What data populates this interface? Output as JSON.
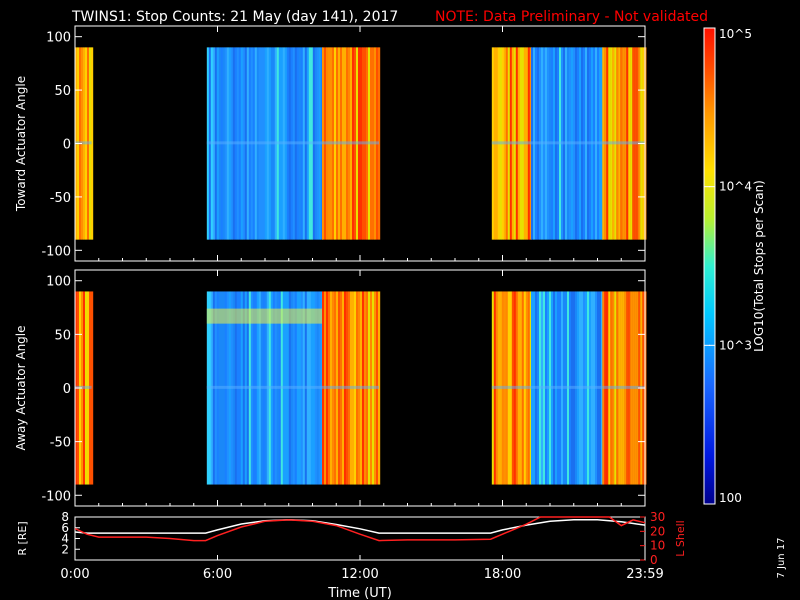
{
  "header": {
    "title": "TWINS1: Stop Counts: 21 May (day 141), 2017",
    "note": "NOTE: Data Preliminary - Not validated",
    "note_color": "#ff0000"
  },
  "side_label": "7 Jun 17",
  "colorbar": {
    "label": "LOG10(Total Stops per Scan)",
    "ticks": [
      "10^5",
      "10^4",
      "10^3",
      "100"
    ],
    "range": [
      100,
      100000
    ],
    "scale": "log"
  },
  "chart_data": [
    {
      "type": "heatmap",
      "panel": "top",
      "ylabel": "Toward Actuator Angle",
      "ylim": [
        -110,
        110
      ],
      "yticks": [
        100,
        50,
        0,
        -50,
        -100
      ],
      "xlim": [
        0,
        24
      ],
      "data_angle_range": [
        -90,
        90
      ],
      "segments": [
        {
          "start": 0.0,
          "end": 0.7,
          "level": "high"
        },
        {
          "start": 5.55,
          "end": 10.4,
          "level": "low"
        },
        {
          "start": 10.4,
          "end": 12.8,
          "level": "high"
        },
        {
          "start": 17.55,
          "end": 19.2,
          "level": "high"
        },
        {
          "start": 19.2,
          "end": 22.2,
          "level": "low"
        },
        {
          "start": 22.2,
          "end": 23.98,
          "level": "high"
        }
      ]
    },
    {
      "type": "heatmap",
      "panel": "middle",
      "ylabel": "Away Actuator Angle",
      "ylim": [
        -110,
        110
      ],
      "yticks": [
        100,
        50,
        0,
        -50,
        -100
      ],
      "xlim": [
        0,
        24
      ],
      "data_angle_range": [
        -90,
        90
      ],
      "segments": [
        {
          "start": 0.0,
          "end": 0.7,
          "level": "high"
        },
        {
          "start": 5.55,
          "end": 10.4,
          "level": "low"
        },
        {
          "start": 10.4,
          "end": 12.8,
          "level": "high"
        },
        {
          "start": 17.55,
          "end": 19.2,
          "level": "high"
        },
        {
          "start": 19.2,
          "end": 22.2,
          "level": "low"
        },
        {
          "start": 22.2,
          "end": 23.98,
          "level": "high"
        }
      ]
    },
    {
      "type": "line",
      "panel": "bottom",
      "xlabel": "Time (UT)",
      "xticks": [
        "0:00",
        "6:00",
        "12:00",
        "18:00",
        "23:59"
      ],
      "xtick_values": [
        0,
        6,
        12,
        18,
        24
      ],
      "xlim": [
        0,
        24
      ],
      "ylabel_left": "R [RE]",
      "ylim_left": [
        0,
        8
      ],
      "yticks_left": [
        2,
        4,
        6,
        8
      ],
      "ylabel_right": "L Shell",
      "ylim_right": [
        0,
        30
      ],
      "yticks_right": [
        0,
        10,
        20,
        30
      ],
      "series": [
        {
          "axis": "left",
          "color": "#ffffff",
          "x": [
            0,
            0.5,
            1,
            2,
            3,
            4,
            5,
            5.5,
            6,
            7,
            8,
            9,
            10,
            11,
            12,
            12.8,
            14,
            16,
            17.5,
            18,
            19,
            20,
            21,
            22,
            23,
            24
          ],
          "y": [
            5.2,
            5.0,
            5.0,
            5.0,
            5.0,
            5.0,
            5.0,
            5.0,
            5.6,
            6.7,
            7.3,
            7.5,
            7.3,
            6.6,
            5.8,
            5.0,
            5.0,
            5.0,
            5.0,
            5.6,
            6.5,
            7.2,
            7.5,
            7.5,
            7.1,
            6.5
          ]
        },
        {
          "axis": "right",
          "color": "#ff2020",
          "x": [
            0,
            0.5,
            1,
            2,
            3,
            4,
            5,
            5.5,
            6,
            7,
            8,
            9,
            10,
            11,
            12,
            12.8,
            14,
            16,
            17.5,
            18,
            19,
            19.6,
            22.5,
            23,
            23.5,
            24
          ],
          "y": [
            22,
            18,
            16,
            16,
            16,
            15,
            13.5,
            13.5,
            17,
            23,
            27,
            28,
            27,
            24,
            18,
            13.5,
            14,
            14,
            14.5,
            18,
            25,
            30,
            30,
            24,
            28,
            26
          ]
        }
      ]
    }
  ]
}
